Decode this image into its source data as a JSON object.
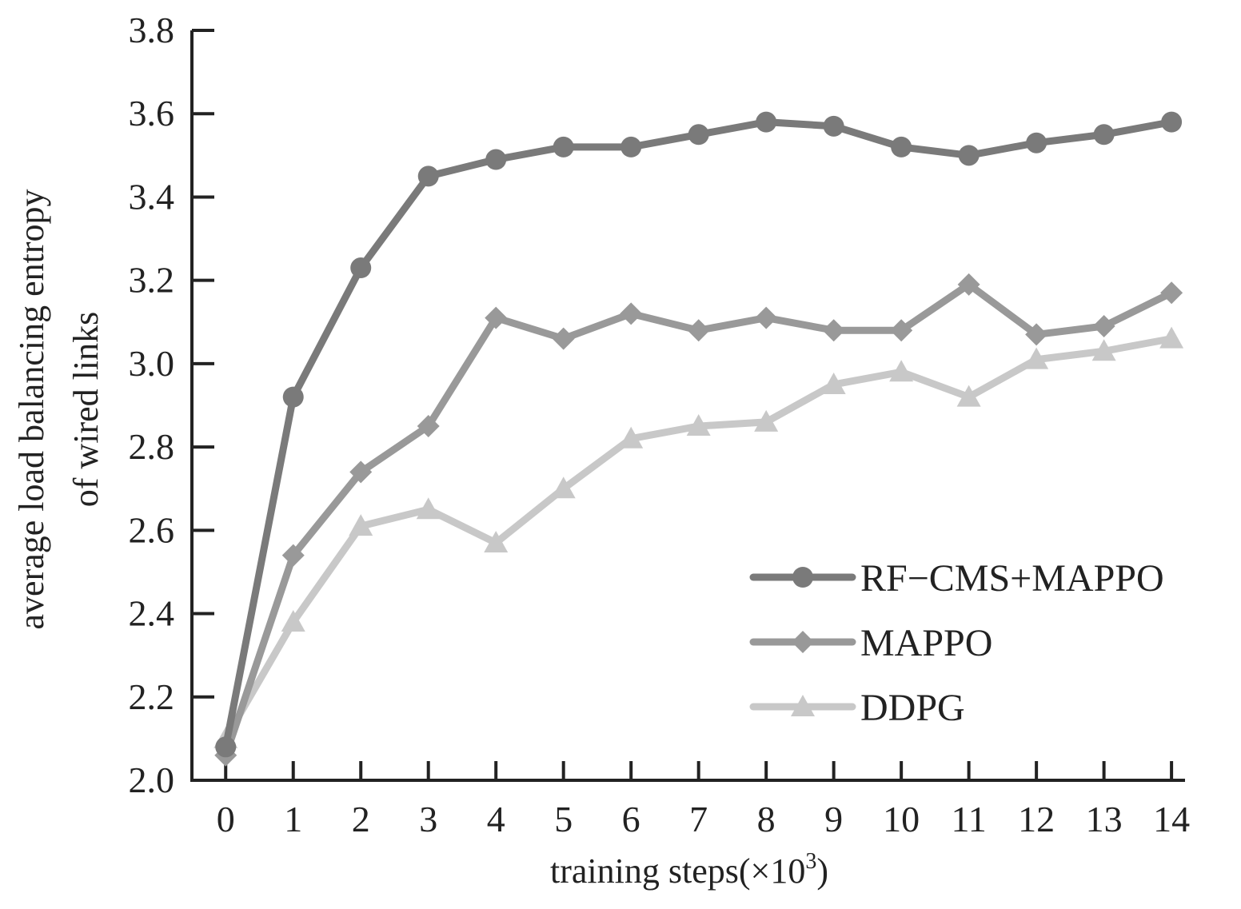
{
  "chart_data": {
    "type": "line",
    "xlabel": "training steps(×10",
    "xlabel_sup": "3",
    "xlabel_end": ")",
    "ylabel_lines": [
      "average load balancing entropy",
      "of wired links"
    ],
    "x": [
      0,
      1,
      2,
      3,
      4,
      5,
      6,
      7,
      8,
      9,
      10,
      11,
      12,
      13,
      14
    ],
    "xticks": [
      "0",
      "1",
      "2",
      "3",
      "4",
      "5",
      "6",
      "7",
      "8",
      "9",
      "10",
      "11",
      "12",
      "13",
      "14"
    ],
    "yticks": [
      "2.0",
      "2.2",
      "2.4",
      "2.6",
      "2.8",
      "3.0",
      "3.2",
      "3.4",
      "3.6",
      "3.8"
    ],
    "ylim": [
      2.0,
      3.8
    ],
    "xlim": [
      -0.5,
      14.2
    ],
    "grid": false,
    "legend_position": "bottom-right",
    "series": [
      {
        "name": "RF−CMS+MAPPO",
        "marker": "circle",
        "color": "#7a7a7a",
        "values": [
          2.08,
          2.92,
          3.23,
          3.45,
          3.49,
          3.52,
          3.52,
          3.55,
          3.58,
          3.57,
          3.52,
          3.5,
          3.53,
          3.55,
          3.58
        ]
      },
      {
        "name": "MAPPO",
        "marker": "diamond",
        "color": "#999999",
        "values": [
          2.06,
          2.54,
          2.74,
          2.85,
          3.11,
          3.06,
          3.12,
          3.08,
          3.11,
          3.08,
          3.08,
          3.19,
          3.07,
          3.09,
          3.17
        ]
      },
      {
        "name": "DDPG",
        "marker": "triangle",
        "color": "#c8c8c8",
        "values": [
          2.1,
          2.38,
          2.61,
          2.65,
          2.57,
          2.7,
          2.82,
          2.85,
          2.86,
          2.95,
          2.98,
          2.92,
          3.01,
          3.03,
          3.06
        ]
      }
    ]
  }
}
